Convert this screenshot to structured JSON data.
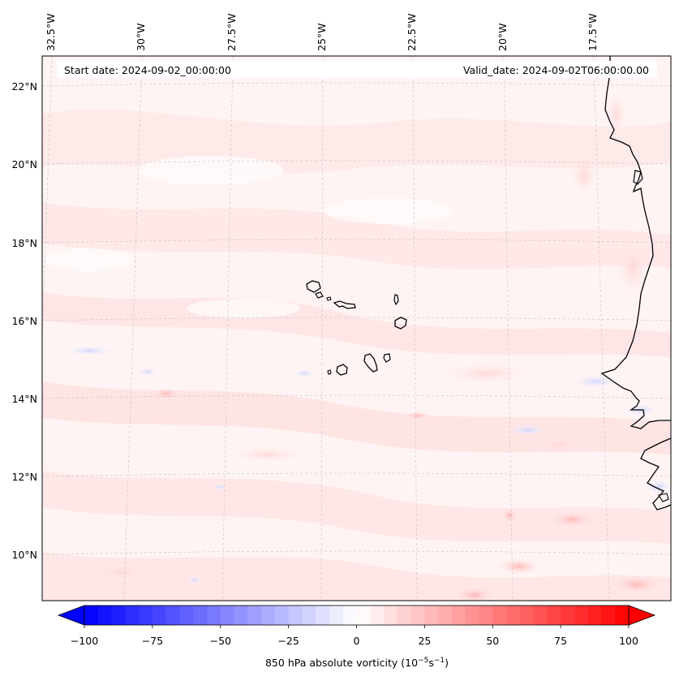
{
  "map": {
    "header": {
      "start_date_label": "Start date: 2024-09-02_00:00:00",
      "valid_date_label": "Valid_date: 2024-09-02T06:00:00.00"
    },
    "lon_ticks": [
      "32.5°W",
      "30°W",
      "27.5°W",
      "25°W",
      "22.5°W",
      "20°W",
      "17.5°W"
    ],
    "lat_ticks": [
      "22°N",
      "20°N",
      "18°N",
      "16°N",
      "14°N",
      "12°N",
      "10°N"
    ],
    "colorbar": {
      "ticks": [
        "−100",
        "−75",
        "−50",
        "−25",
        "0",
        "25",
        "50",
        "75",
        "100"
      ],
      "label_main": "850 hPa absolute vorticity (10",
      "label_exp1": "−5",
      "label_mid": "s",
      "label_exp2": "−1",
      "label_end": ")",
      "min_color": "#0000ff",
      "mid_color": "#ffffff",
      "max_color": "#ff0000",
      "value_range": [
        -100,
        100
      ],
      "levels": 40
    }
  }
}
